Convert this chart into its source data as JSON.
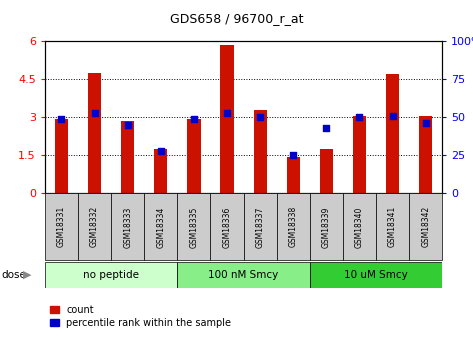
{
  "title": "GDS658 / 96700_r_at",
  "samples": [
    "GSM18331",
    "GSM18332",
    "GSM18333",
    "GSM18334",
    "GSM18335",
    "GSM18336",
    "GSM18337",
    "GSM18338",
    "GSM18339",
    "GSM18340",
    "GSM18341",
    "GSM18342"
  ],
  "count_values": [
    2.95,
    4.75,
    2.85,
    1.75,
    2.95,
    5.85,
    3.3,
    1.45,
    1.75,
    3.05,
    4.7,
    3.05
  ],
  "percentile_values": [
    49,
    53,
    45,
    28,
    49,
    53,
    50,
    25,
    43,
    50,
    51,
    46
  ],
  "groups": [
    {
      "label": "no peptide",
      "start": 0,
      "end": 4,
      "color": "#ccffcc"
    },
    {
      "label": "100 nM Smcy",
      "start": 4,
      "end": 8,
      "color": "#88ee88"
    },
    {
      "label": "10 uM Smcy",
      "start": 8,
      "end": 12,
      "color": "#33cc33"
    }
  ],
  "ylim_left": [
    0,
    6
  ],
  "ylim_right": [
    0,
    100
  ],
  "yticks_left": [
    0,
    1.5,
    3.0,
    4.5,
    6.0
  ],
  "yticks_right": [
    0,
    25,
    50,
    75,
    100
  ],
  "bar_color": "#cc1100",
  "dot_color": "#0000cc",
  "tick_bg_color": "#cccccc",
  "dose_label": "dose",
  "bar_width": 0.4
}
